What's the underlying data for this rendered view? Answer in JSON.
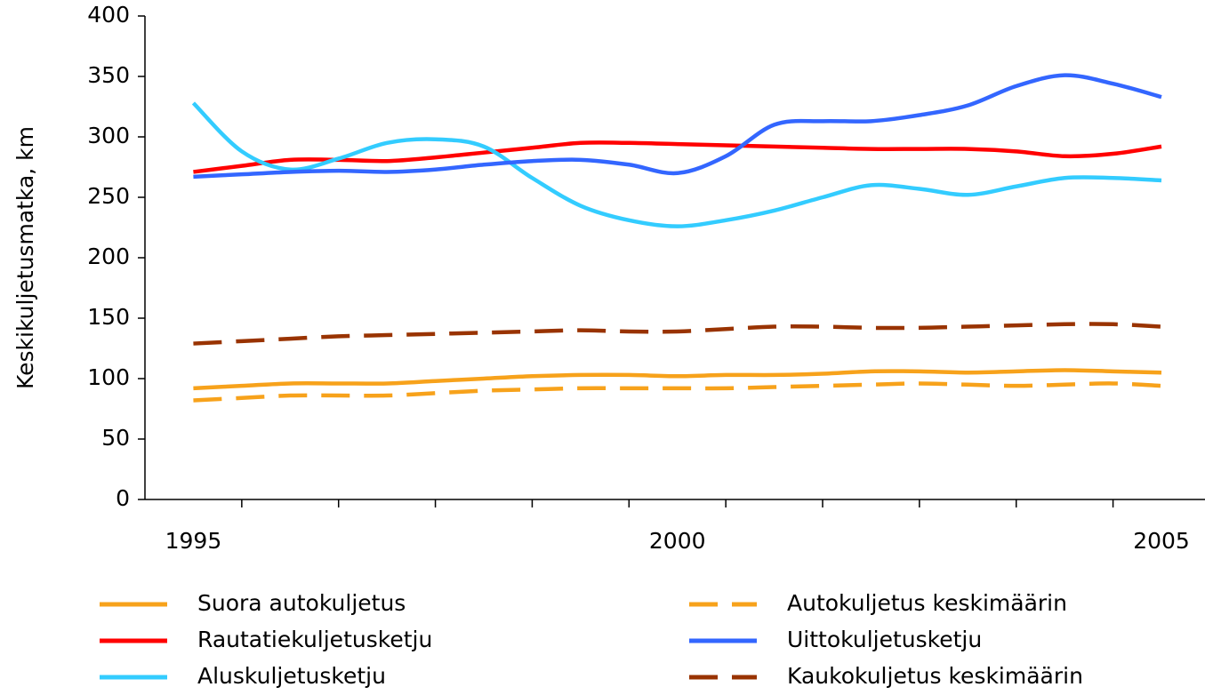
{
  "chart_data": {
    "type": "line",
    "y_label": "Keskikuljetusmatka, km",
    "x": [
      1995,
      1995.5,
      1996,
      1996.5,
      1997,
      1997.5,
      1998,
      1998.5,
      1999,
      1999.5,
      2000,
      2000.5,
      2001,
      2001.5,
      2002,
      2002.5,
      2003,
      2003.5,
      2004,
      2004.5,
      2005
    ],
    "xlim": [
      1994.5,
      2005.45
    ],
    "xticks": [
      1995,
      2000,
      2005
    ],
    "xminorticks": [
      1995.5,
      1996.5,
      1997.5,
      1998.5,
      1999.5,
      2000.5,
      2001.5,
      2002.5,
      2003.5,
      2004.5
    ],
    "ylim": [
      0,
      400
    ],
    "yticks": [
      0,
      50,
      100,
      150,
      200,
      250,
      300,
      350,
      400
    ],
    "legend": "bottom",
    "series": [
      {
        "name": "Suora autokuljetus",
        "color": "#f7a21b",
        "dashed": false,
        "values": [
          92,
          94,
          96,
          96,
          96,
          98,
          100,
          102,
          103,
          103,
          102,
          103,
          103,
          104,
          106,
          106,
          105,
          106,
          107,
          106,
          105
        ]
      },
      {
        "name": "Rautatiekuljetusketju",
        "color": "#ff0000",
        "dashed": false,
        "values": [
          271,
          276,
          281,
          281,
          280,
          283,
          287,
          291,
          295,
          295,
          294,
          293,
          292,
          291,
          290,
          290,
          290,
          288,
          284,
          286,
          292
        ]
      },
      {
        "name": "Aluskuljetusketju",
        "color": "#33ccff",
        "dashed": false,
        "values": [
          328,
          288,
          273,
          282,
          295,
          298,
          292,
          266,
          243,
          231,
          226,
          231,
          239,
          250,
          260,
          257,
          252,
          259,
          266,
          266,
          264
        ]
      },
      {
        "name": "Autokuljetus keskimäärin",
        "color": "#f7a21b",
        "dashed": true,
        "values": [
          82,
          84,
          86,
          86,
          86,
          88,
          90,
          91,
          92,
          92,
          92,
          92,
          93,
          94,
          95,
          96,
          95,
          94,
          95,
          96,
          94
        ]
      },
      {
        "name": "Uittokuljetusketju",
        "color": "#3366ff",
        "dashed": false,
        "values": [
          267,
          269,
          271,
          272,
          271,
          273,
          277,
          280,
          281,
          277,
          270,
          284,
          310,
          313,
          313,
          318,
          326,
          342,
          351,
          344,
          333
        ]
      },
      {
        "name": "Kaukokuljetus keskimäärin",
        "color": "#993300",
        "dashed": true,
        "values": [
          129,
          131,
          133,
          135,
          136,
          137,
          138,
          139,
          140,
          139,
          139,
          141,
          143,
          143,
          142,
          142,
          143,
          144,
          145,
          145,
          143
        ]
      }
    ]
  }
}
